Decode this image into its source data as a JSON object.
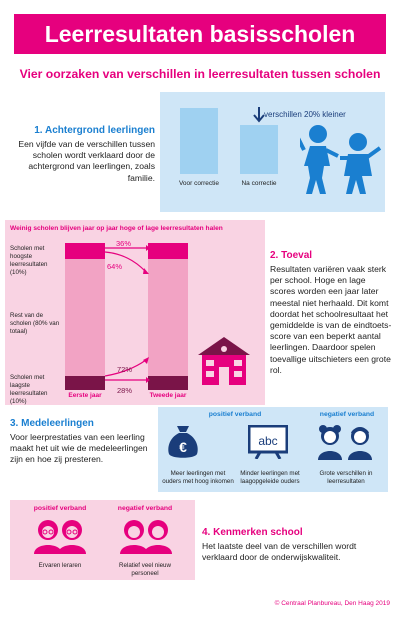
{
  "title": "Leerresultaten basisscholen",
  "subtitle": "Vier oorzaken van verschillen in leerresultaten tussen scholen",
  "section1": {
    "heading": "1. Achtergrond leerlingen",
    "body": "Een vijfde van de verschillen tussen scholen wordt verklaard door de achtergrond van leerlingen, zoals familie.",
    "annotation": "verschillen 20% kleiner",
    "bar_labels": [
      "Voor correctie",
      "Na correctie"
    ],
    "relative_difference_after": 0.8
  },
  "section2": {
    "heading": "2. Toeval",
    "body": "Resultaten variëren vaak sterk per school. Hoge en lage scores worden een jaar later meestal niet herhaald. Dit komt doordat het schoolresultaat het gemiddelde is van de eindtoets-score van een beperkt aantal leerlingen. Daardoor spelen toevallige uitschieters een grote rol.",
    "panel_title": "Weinig scholen blijven jaar op jaar hoge of lage leerresultaten halen",
    "rows": [
      "Scholen met hoogste leerresultaten (10%)",
      "Rest van de scholen (80% van totaal)",
      "Scholen met laagste leerresultaten (10%)"
    ],
    "flows": [
      "36%",
      "64%",
      "72%",
      "28%"
    ],
    "year_labels": [
      "Eerste jaar",
      "Tweede jaar"
    ]
  },
  "section3": {
    "heading": "3. Medeleerlingen",
    "body": "Voor leerprestaties van een leerling maakt het uit wie de medeleerlingen zijn en hoe zij presteren.",
    "positive_label": "positief verband",
    "negative_label": "negatief verband",
    "items": [
      "Meer leerlingen met ouders met hoog inkomen",
      "Minder leerlingen met laagopgeleide ouders",
      "Grote verschillen in leerresultaten"
    ],
    "blackboard_text": "abc",
    "euro_symbol": "€"
  },
  "section4": {
    "heading": "4. Kenmerken school",
    "body": "Het laatste deel van de verschillen wordt verklaard door de onderwijskwaliteit.",
    "positive_label": "positief verband",
    "negative_label": "negatief verband",
    "items": [
      "Ervaren leraren",
      "Relatief veel nieuw personeel"
    ]
  },
  "footer": "© Centraal Planbureau, Den Haag 2019",
  "colors": {
    "magenta": "#e6007e",
    "blue": "#1a7fd0",
    "light_blue": "#cfe6f7",
    "bar_blue": "#9fd1f1",
    "light_pink": "#f9d3e3",
    "bar_pink": "#f2a3c4",
    "dark_purple": "#7a1448"
  }
}
